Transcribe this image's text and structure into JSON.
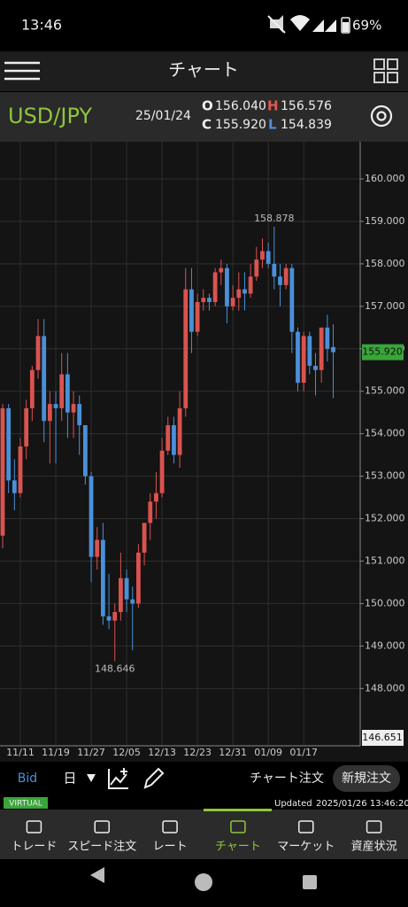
{
  "status": {
    "time": "13:46",
    "battery": "69%"
  },
  "header": {
    "title": "チャート"
  },
  "symbol": {
    "pair": "USD/JPY",
    "date": "25/01/24",
    "o_label": "O",
    "open": "156.040",
    "h_label": "H",
    "high": "156.576",
    "c_label": "C",
    "close": "155.920",
    "l_label": "L",
    "low": "154.839"
  },
  "chart_data": {
    "type": "candlestick",
    "grid": true,
    "up_color": "#d9534f",
    "down_color": "#4a90d9",
    "categories": [
      null,
      null,
      null,
      "11/11",
      null,
      null,
      null,
      null,
      null,
      "11/19",
      null,
      null,
      null,
      null,
      null,
      "11/27",
      null,
      null,
      null,
      null,
      null,
      "12/05",
      null,
      null,
      null,
      null,
      null,
      "12/13",
      null,
      null,
      null,
      null,
      null,
      "12/23",
      null,
      null,
      null,
      null,
      null,
      "12/31",
      null,
      null,
      null,
      null,
      null,
      "01/09",
      null,
      null,
      null,
      null,
      null,
      "01/17",
      null,
      null,
      null,
      null,
      null
    ],
    "open": [
      151.6,
      154.6,
      152.9,
      152.6,
      153.7,
      154.6,
      155.5,
      156.3,
      154.3,
      154.7,
      154.6,
      155.4,
      154.5,
      154.7,
      154.2,
      153.0,
      151.1,
      151.5,
      149.7,
      149.6,
      149.8,
      150.6,
      150.1,
      150.0,
      151.2,
      151.9,
      152.4,
      152.6,
      153.6,
      154.2,
      153.5,
      154.6,
      157.4,
      156.4,
      157.1,
      157.2,
      157.1,
      157.8,
      157.9,
      157.0,
      157.2,
      157.4,
      157.3,
      157.7,
      158.1,
      158.3,
      158.0,
      157.7,
      157.5,
      157.9,
      156.4,
      155.2,
      156.3,
      155.6,
      155.5,
      156.5,
      156.04
    ],
    "high": [
      154.7,
      154.7,
      153.4,
      153.9,
      154.8,
      155.6,
      156.7,
      156.7,
      155.0,
      155.0,
      155.9,
      155.9,
      155.0,
      154.9,
      154.2,
      153.1,
      151.8,
      151.9,
      150.7,
      150.0,
      151.2,
      150.8,
      150.4,
      151.4,
      151.9,
      152.6,
      153.1,
      153.9,
      154.4,
      154.4,
      155.0,
      157.9,
      157.9,
      157.3,
      157.4,
      157.3,
      157.9,
      158.1,
      158.0,
      157.5,
      157.8,
      157.8,
      158.0,
      158.4,
      158.6,
      158.5,
      158.878,
      158.0,
      158.0,
      158.0,
      156.5,
      156.4,
      156.4,
      155.9,
      156.5,
      156.8,
      156.576
    ],
    "low": [
      151.3,
      152.6,
      152.2,
      152.5,
      153.4,
      154.3,
      155.3,
      153.8,
      153.3,
      153.3,
      154.3,
      153.9,
      153.9,
      153.5,
      152.8,
      150.5,
      150.8,
      149.5,
      149.4,
      148.646,
      149.6,
      149.8,
      148.9,
      149.9,
      150.9,
      151.5,
      152.0,
      152.5,
      153.5,
      153.3,
      153.2,
      154.4,
      155.9,
      156.3,
      156.9,
      156.9,
      157.0,
      157.5,
      156.6,
      156.9,
      156.9,
      156.9,
      157.2,
      157.6,
      157.9,
      157.9,
      157.4,
      157.0,
      157.4,
      155.9,
      155.0,
      155.0,
      155.4,
      154.9,
      155.2,
      155.7,
      154.839
    ],
    "close": [
      154.6,
      152.9,
      152.6,
      153.7,
      154.6,
      155.5,
      156.3,
      154.3,
      154.7,
      154.6,
      155.4,
      154.5,
      154.7,
      154.2,
      153.0,
      151.1,
      151.5,
      149.7,
      149.6,
      149.8,
      150.6,
      150.1,
      150.0,
      151.2,
      151.9,
      152.4,
      152.6,
      153.6,
      154.2,
      153.5,
      154.6,
      157.4,
      156.4,
      157.1,
      157.2,
      157.1,
      157.8,
      157.9,
      157.0,
      157.2,
      157.4,
      157.3,
      157.7,
      158.1,
      158.3,
      158.0,
      157.7,
      157.5,
      157.9,
      156.4,
      155.2,
      156.3,
      155.6,
      155.5,
      156.5,
      156.0,
      155.92
    ],
    "ylim": [
      146.651,
      160.876
    ],
    "yticks": [
      {
        "value": 148,
        "label": "148.000"
      },
      {
        "value": 149,
        "label": "149.000"
      },
      {
        "value": 150,
        "label": "150.000"
      },
      {
        "value": 151,
        "label": "151.000"
      },
      {
        "value": 152,
        "label": "152.000"
      },
      {
        "value": 153,
        "label": "153.000"
      },
      {
        "value": 154,
        "label": "154.000"
      },
      {
        "value": 155,
        "label": "155.000"
      },
      {
        "value": 156,
        "label": "156.000"
      },
      {
        "value": 157,
        "label": "157.000"
      },
      {
        "value": 158,
        "label": "158.000"
      },
      {
        "value": 159,
        "label": "159.000"
      },
      {
        "value": 160,
        "label": "160.000"
      }
    ],
    "price_labels": [
      {
        "value": 155.92,
        "label": "155.920",
        "color": "#3aa53a"
      },
      {
        "value": 146.651,
        "label": "146.651",
        "color": "#eeeeee"
      }
    ]
  },
  "toolbar": {
    "price_type": "Bid",
    "period": "日",
    "chart_order": "チャート注文",
    "new_order": "新規注文"
  },
  "info": {
    "mode": "VIRTUAL",
    "updated_label": "Updated",
    "updated": "2025/01/26 13:46:20"
  },
  "nav": [
    "トレード",
    "スピード注文",
    "レート",
    "チャート",
    "マーケット",
    "資産状況"
  ]
}
